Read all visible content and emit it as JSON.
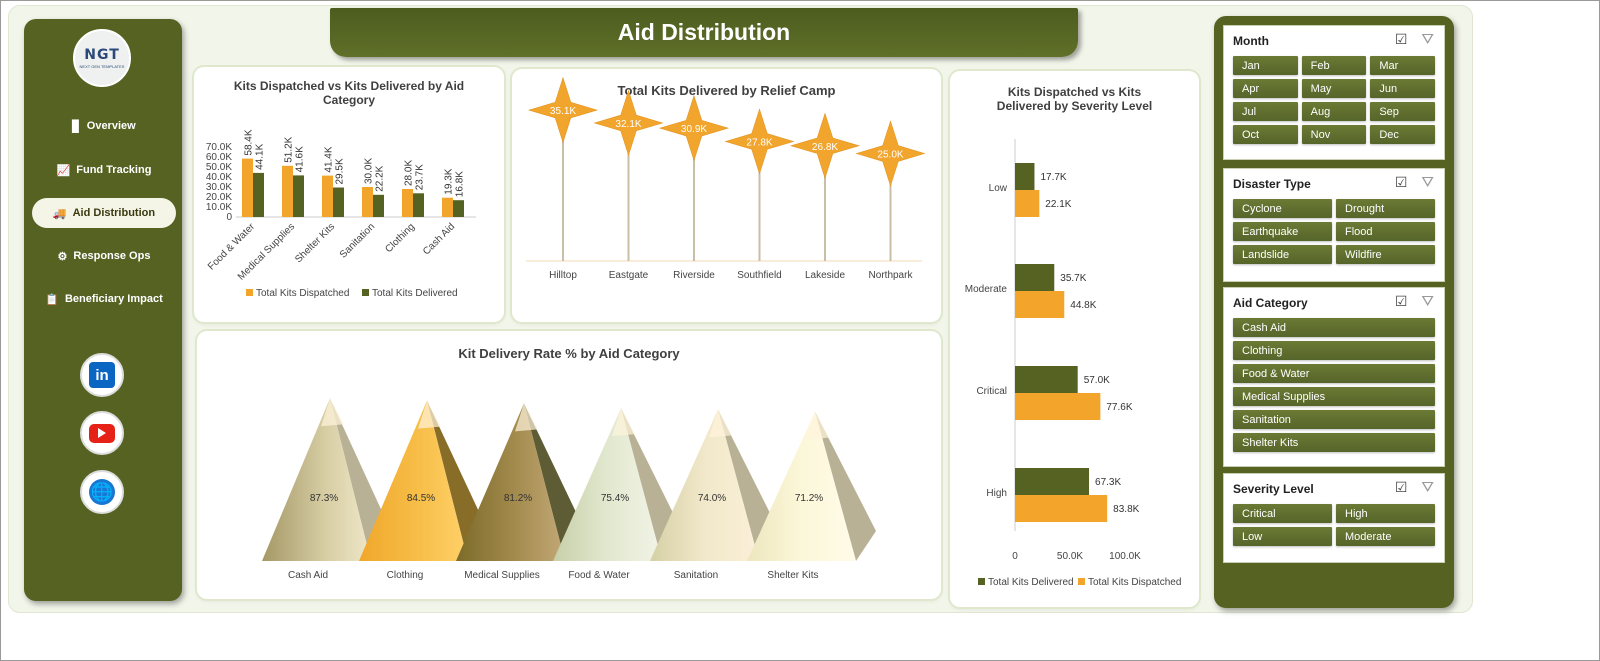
{
  "page": {
    "title": "Aid Distribution"
  },
  "colors": {
    "olive": "#556222",
    "orange": "#f3a42b",
    "bg": "#f2f5ea"
  },
  "logo": {
    "text": "NGT",
    "subtext": "NEXT GEN TEMPLATES"
  },
  "nav": [
    {
      "label": "Overview",
      "icon": "bar-chart-icon",
      "glyph": "▊"
    },
    {
      "label": "Fund Tracking",
      "icon": "line-chart-icon",
      "glyph": "📈"
    },
    {
      "label": "Aid Distribution",
      "icon": "truck-icon",
      "glyph": "🚚",
      "active": true
    },
    {
      "label": "Response Ops",
      "icon": "gear-icon",
      "glyph": "⚙"
    },
    {
      "label": "Beneficiary Impact",
      "icon": "clipboard-icon",
      "glyph": "📋"
    }
  ],
  "social": [
    {
      "name": "linkedin-icon",
      "glyph": "in"
    },
    {
      "name": "youtube-icon",
      "glyph": ""
    },
    {
      "name": "globe-icon",
      "glyph": "🌐"
    }
  ],
  "charts": {
    "category_bar": {
      "title": "Kits Dispatched vs Kits Delivered by Aid Category",
      "legend": [
        "Total Kits Dispatched",
        "Total Kits Delivered"
      ],
      "yticks": [
        "0",
        "10.0K",
        "20.0K",
        "30.0K",
        "40.0K",
        "50.0K",
        "60.0K",
        "70.0K"
      ]
    },
    "camp_lollipop": {
      "title": "Total Kits Delivered by Relief Camp"
    },
    "severity_bar": {
      "title": "Kits Dispatched vs Kits Delivered by Severity Level",
      "xticks": [
        "0",
        "50.0K",
        "100.0K"
      ],
      "legend": [
        "Total Kits Delivered",
        "Total Kits Dispatched"
      ]
    },
    "rate_pyramid": {
      "title": "Kit Delivery Rate % by Aid Category"
    }
  },
  "chart_data": [
    {
      "type": "bar",
      "title": "Kits Dispatched vs Kits Delivered by Aid Category",
      "categories": [
        "Food & Water",
        "Medical Supplies",
        "Shelter Kits",
        "Sanitation",
        "Clothing",
        "Cash Aid"
      ],
      "series": [
        {
          "name": "Total Kits Dispatched",
          "values": [
            58400,
            51200,
            41400,
            30000,
            28000,
            19300
          ],
          "labels": [
            "58.4K",
            "51.2K",
            "41.4K",
            "30.0K",
            "28.0K",
            "19.3K"
          ],
          "color": "#f3a42b"
        },
        {
          "name": "Total Kits Delivered",
          "values": [
            44100,
            41600,
            29500,
            22200,
            23700,
            16800
          ],
          "labels": [
            "44.1K",
            "41.6K",
            "29.5K",
            "22.2K",
            "23.7K",
            "16.8K"
          ],
          "color": "#556222"
        }
      ],
      "ylim": [
        0,
        70000
      ],
      "legend": "bottom"
    },
    {
      "type": "bar",
      "title": "Total Kits Delivered by Relief Camp",
      "categories": [
        "Hilltop",
        "Eastgate",
        "Riverside",
        "Southfield",
        "Lakeside",
        "Northpark"
      ],
      "values": [
        35100,
        32100,
        30900,
        27800,
        26800,
        25000
      ],
      "labels": [
        "35.1K",
        "32.1K",
        "30.9K",
        "27.8K",
        "26.8K",
        "25.0K"
      ]
    },
    {
      "type": "bar",
      "title": "Kits Dispatched vs Kits Delivered by Severity Level",
      "categories": [
        "Low",
        "Moderate",
        "Critical",
        "High"
      ],
      "series": [
        {
          "name": "Total Kits Delivered",
          "values": [
            17700,
            35700,
            57000,
            67300
          ],
          "labels": [
            "17.7K",
            "35.7K",
            "57.0K",
            "67.3K"
          ],
          "color": "#556222"
        },
        {
          "name": "Total Kits Dispatched",
          "values": [
            22100,
            44800,
            77600,
            83800
          ],
          "labels": [
            "22.1K",
            "44.8K",
            "77.6K",
            "83.8K"
          ],
          "color": "#f3a42b"
        }
      ],
      "xlim": [
        0,
        100000
      ],
      "legend": "bottom"
    },
    {
      "type": "bar",
      "title": "Kit Delivery Rate % by Aid Category",
      "categories": [
        "Cash Aid",
        "Clothing",
        "Medical Supplies",
        "Food & Water",
        "Sanitation",
        "Shelter Kits"
      ],
      "values": [
        87.3,
        84.5,
        81.2,
        75.4,
        74.0,
        71.2
      ],
      "labels": [
        "87.3%",
        "84.5%",
        "81.2%",
        "75.4%",
        "74.0%",
        "71.2%"
      ]
    }
  ],
  "slicers": [
    {
      "title": "Month",
      "items": [
        "Jan",
        "Feb",
        "Mar",
        "Apr",
        "May",
        "Jun",
        "Jul",
        "Aug",
        "Sep",
        "Oct",
        "Nov",
        "Dec"
      ],
      "cols": 3
    },
    {
      "title": "Disaster Type",
      "items": [
        "Cyclone",
        "Drought",
        "Earthquake",
        "Flood",
        "Landslide",
        "Wildfire"
      ],
      "cols": 2
    },
    {
      "title": "Aid Category",
      "items": [
        "Cash Aid",
        "Clothing",
        "Food & Water",
        "Medical Supplies",
        "Sanitation",
        "Shelter Kits"
      ],
      "cols": 1
    },
    {
      "title": "Severity Level",
      "items": [
        "Critical",
        "High",
        "Low",
        "Moderate"
      ],
      "cols": 2
    }
  ]
}
